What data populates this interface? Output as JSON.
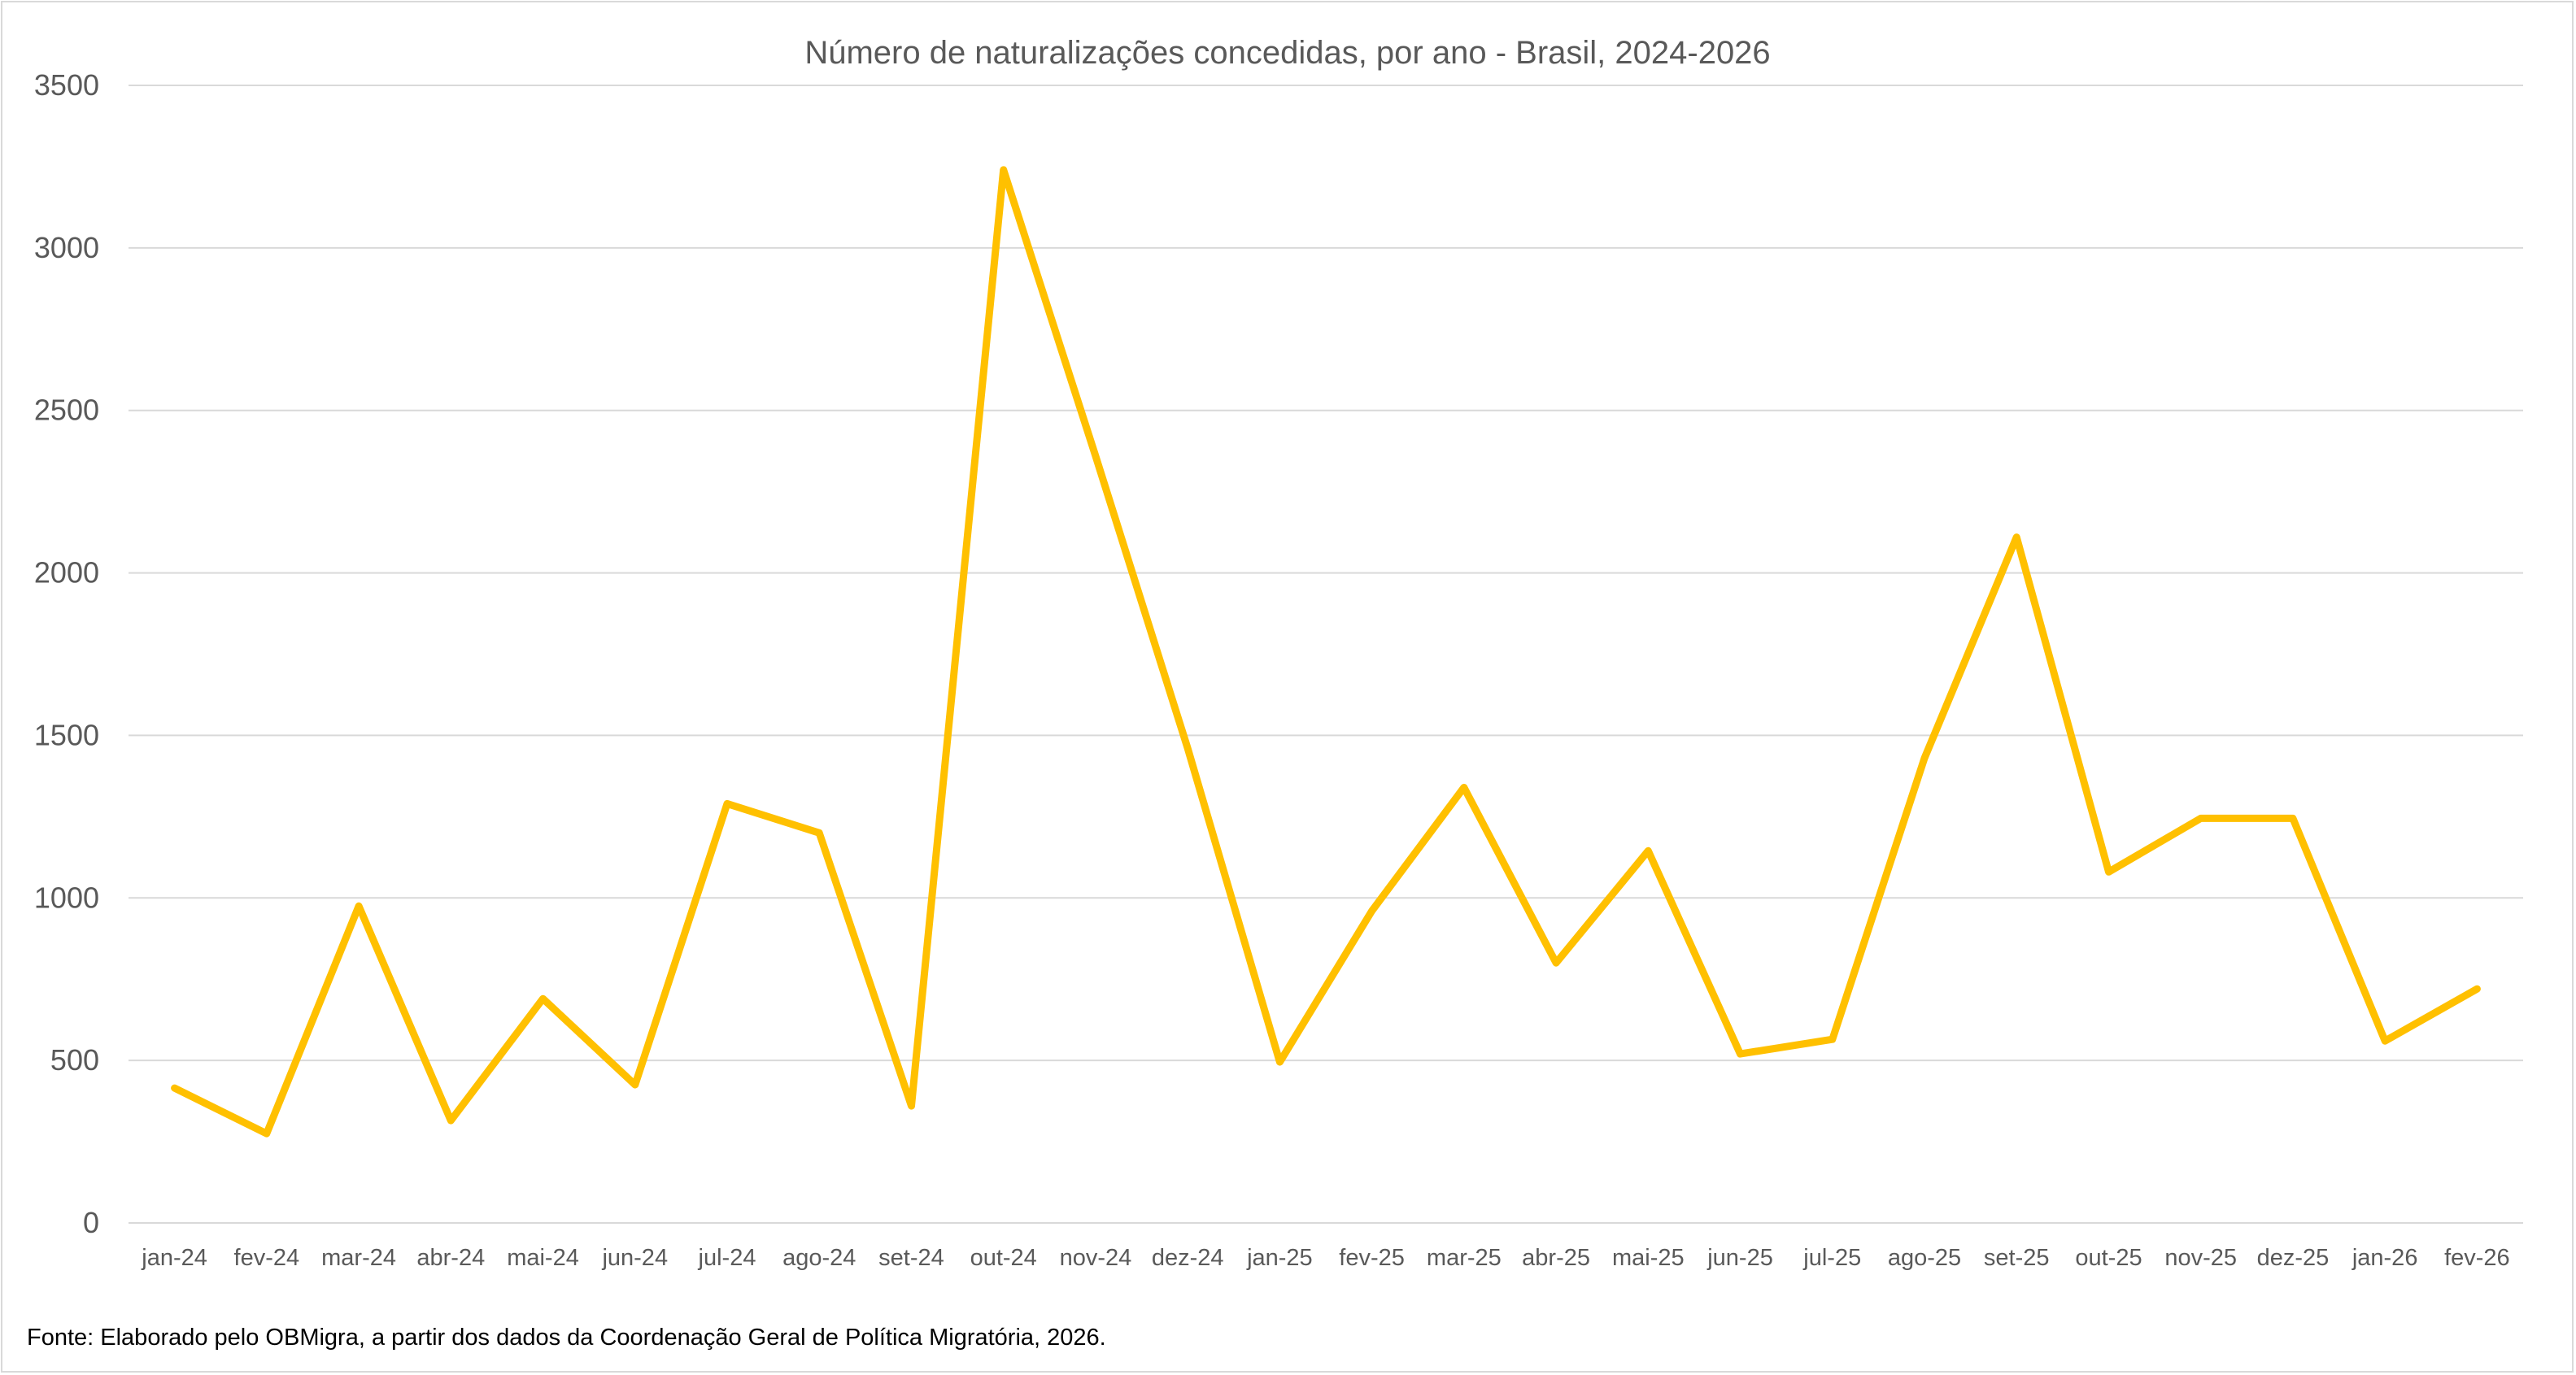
{
  "chart_data": {
    "type": "line",
    "title": "Número de naturalizações concedidas, por ano - Brasil, 2024-2026",
    "xlabel": "",
    "ylabel": "",
    "ylim": [
      0,
      3500
    ],
    "yticks": [
      "0",
      "500",
      "1000",
      "1500",
      "2000",
      "2500",
      "3000",
      "3500"
    ],
    "grid": true,
    "legend": "none",
    "categories": [
      "jan-24",
      "fev-24",
      "mar-24",
      "abr-24",
      "mai-24",
      "jun-24",
      "jul-24",
      "ago-24",
      "set-24",
      "out-24",
      "nov-24",
      "dez-24",
      "jan-25",
      "fev-25",
      "mar-25",
      "abr-25",
      "mai-25",
      "jun-25",
      "jul-25",
      "ago-25",
      "set-25",
      "out-25",
      "nov-25",
      "dez-25",
      "jan-26",
      "fev-26"
    ],
    "series": [
      {
        "color": "#ffc000",
        "values": [
          415,
          275,
          975,
          315,
          690,
          425,
          1290,
          1200,
          360,
          3240,
          2360,
          1460,
          495,
          960,
          1340,
          800,
          1145,
          520,
          565,
          1430,
          2110,
          1080,
          1245,
          1245,
          560,
          720
        ]
      }
    ],
    "source": "Fonte: Elaborado pelo OBMigra, a partir dos dados da Coordenação Geral de Política Migratória, 2026."
  }
}
